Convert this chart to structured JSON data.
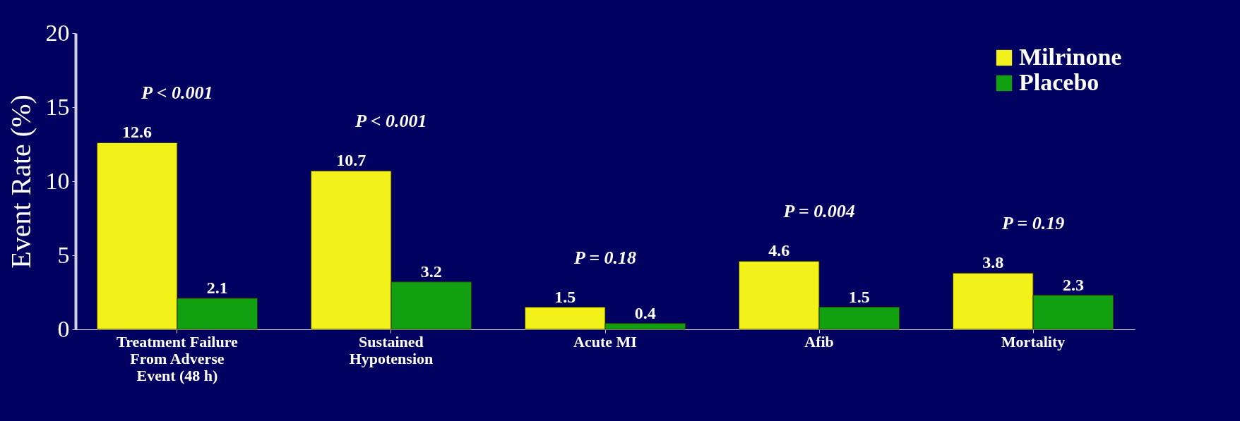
{
  "chart_data": {
    "type": "bar",
    "ylabel": "Event Rate (%)",
    "categories": [
      "Treatment Failure\nFrom Adverse\nEvent (48 h)",
      "Sustained\nHypotension",
      "Acute MI",
      "Afib",
      "Mortality"
    ],
    "series": [
      {
        "name": "Milrinone",
        "color": "#f2f21a",
        "values": [
          12.6,
          10.7,
          1.5,
          4.6,
          3.8
        ]
      },
      {
        "name": "Placebo",
        "color": "#10a010",
        "values": [
          2.1,
          3.2,
          0.4,
          1.5,
          2.3
        ]
      }
    ],
    "ylim": [
      0,
      20
    ],
    "yticks": [
      0,
      5,
      10,
      15,
      20
    ],
    "grid": false,
    "legend": "top right",
    "data_labels": true,
    "annotations": [
      "P < 0.001",
      "P < 0.001",
      "P = 0.18",
      "P = 0.004",
      "P = 0.19"
    ]
  }
}
